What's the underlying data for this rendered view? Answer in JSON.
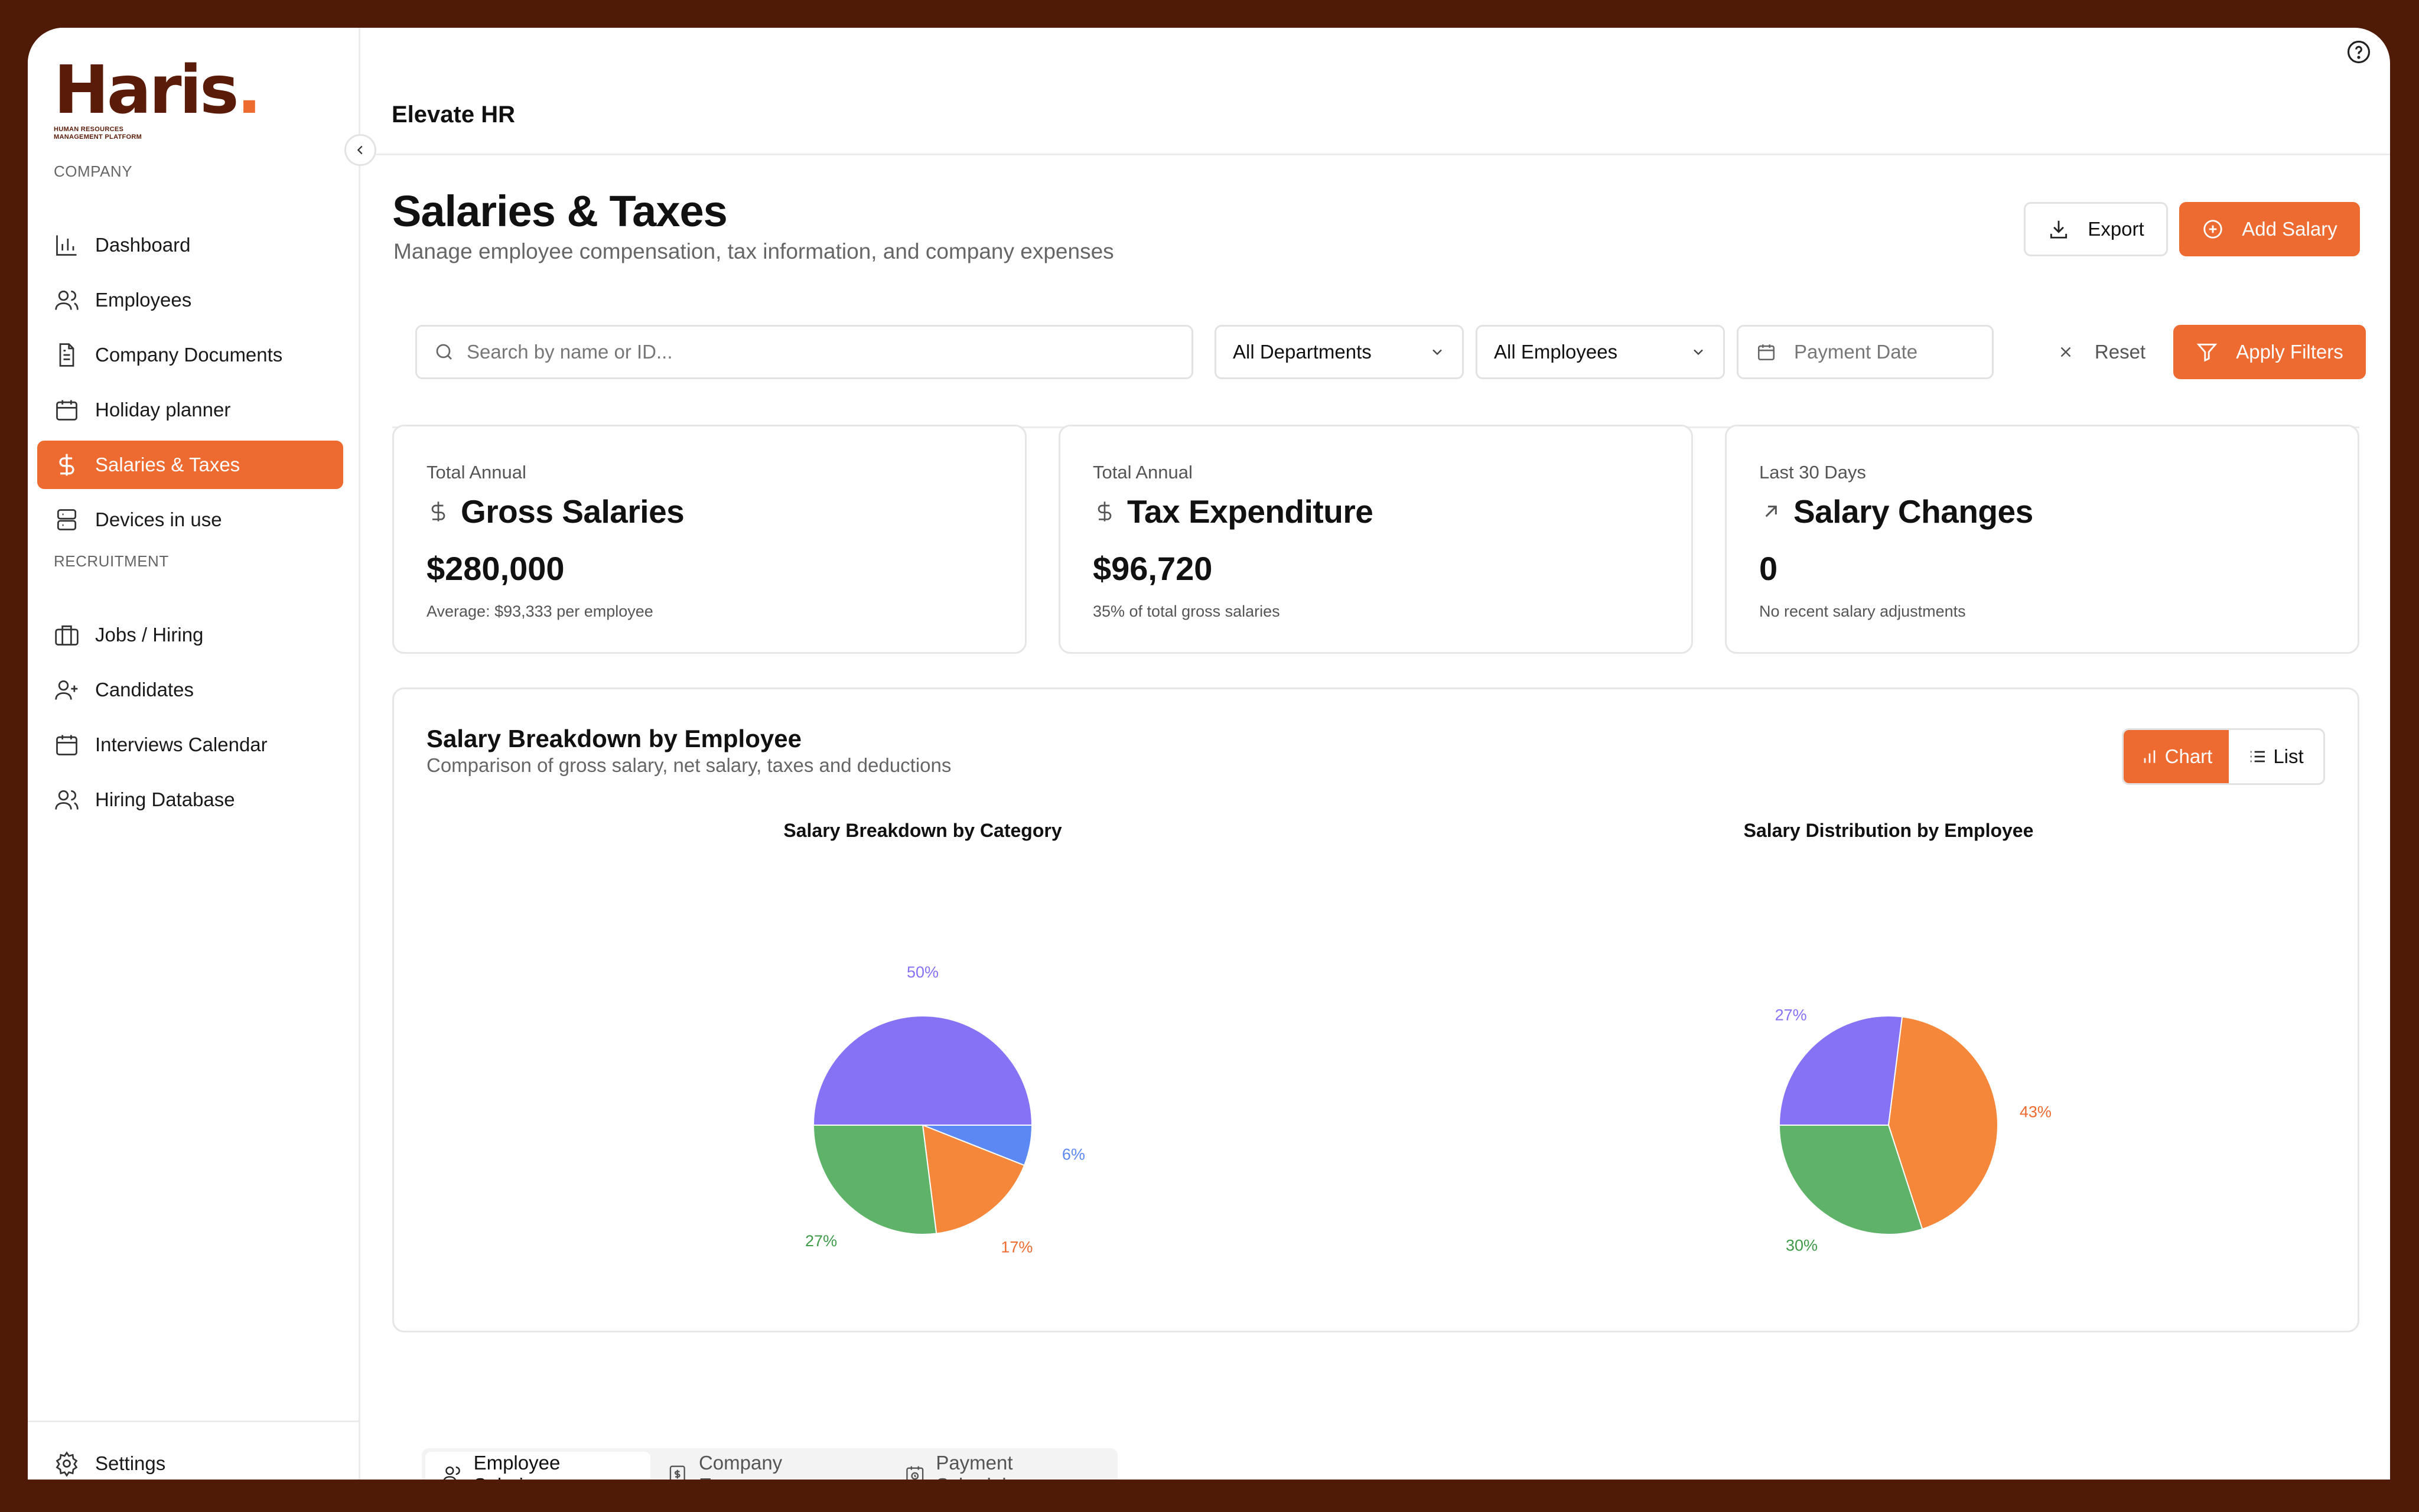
{
  "brand": {
    "logo_text": "Haris",
    "logo_dot": ".",
    "tagline": "HUMAN RESOURCES MANAGEMENT PLATFORM"
  },
  "sidebar": {
    "company_label": "COMPANY",
    "recruitment_label": "RECRUITMENT",
    "company_items": [
      {
        "label": "Dashboard",
        "icon": "bar-chart-icon"
      },
      {
        "label": "Employees",
        "icon": "users-icon"
      },
      {
        "label": "Company Documents",
        "icon": "document-icon"
      },
      {
        "label": "Holiday planner",
        "icon": "calendar-icon"
      },
      {
        "label": "Salaries & Taxes",
        "icon": "dollar-icon",
        "active": true
      },
      {
        "label": "Devices in use",
        "icon": "devices-icon"
      }
    ],
    "recruitment_items": [
      {
        "label": "Jobs / Hiring",
        "icon": "briefcase-icon"
      },
      {
        "label": "Candidates",
        "icon": "user-plus-icon"
      },
      {
        "label": "Interviews Calendar",
        "icon": "calendar-icon"
      },
      {
        "label": "Hiring Database",
        "icon": "users-icon"
      }
    ],
    "settings_label": "Settings"
  },
  "header": {
    "org_name": "Elevate HR"
  },
  "page": {
    "title": "Salaries & Taxes",
    "subtitle": "Manage employee compensation, tax information, and company expenses",
    "export_label": "Export",
    "add_label": "Add Salary"
  },
  "filters": {
    "search_placeholder": "Search by name or ID...",
    "department": "All Departments",
    "employees": "All Employees",
    "date_placeholder": "Payment Date",
    "reset_label": "Reset",
    "apply_label": "Apply Filters"
  },
  "stats": [
    {
      "label": "Total Annual",
      "title": "Gross Salaries",
      "value": "$280,000",
      "note": "Average: $93,333 per employee",
      "icon": "dollar-icon"
    },
    {
      "label": "Total Annual",
      "title": "Tax Expenditure",
      "value": "$96,720",
      "note": "35% of total gross salaries",
      "icon": "dollar-icon"
    },
    {
      "label": "Last 30 Days",
      "title": "Salary Changes",
      "value": "0",
      "note": "No recent salary adjustments",
      "icon": "arrow-up-right-icon"
    }
  ],
  "breakdown": {
    "title": "Salary Breakdown by Employee",
    "subtitle": "Comparison of gross salary, net salary, taxes and deductions",
    "chart_label": "Chart",
    "list_label": "List"
  },
  "colors": {
    "accent": "#ed6a31",
    "purple": "#8672f5",
    "blue": "#5b88f2",
    "orange": "#f5873a",
    "green": "#5fb369"
  },
  "chart_data": [
    {
      "type": "pie",
      "title": "Salary Breakdown by Category",
      "slices": [
        {
          "value": 50,
          "label": "50%",
          "color": "#8672f5"
        },
        {
          "value": 6,
          "label": "6%",
          "color": "#5b88f2"
        },
        {
          "value": 17,
          "label": "17%",
          "color": "#f5873a"
        },
        {
          "value": 27,
          "label": "27%",
          "color": "#5fb369"
        }
      ]
    },
    {
      "type": "pie",
      "title": "Salary Distribution by Employee",
      "slices": [
        {
          "value": 27,
          "label": "27%",
          "color": "#8672f5"
        },
        {
          "value": 43,
          "label": "43%",
          "color": "#f5873a"
        },
        {
          "value": 30,
          "label": "30%",
          "color": "#5fb369"
        }
      ]
    }
  ],
  "tabs": [
    {
      "label": "Employee Salaries",
      "active": true
    },
    {
      "label": "Company Expenses"
    },
    {
      "label": "Payment Schedule"
    }
  ]
}
